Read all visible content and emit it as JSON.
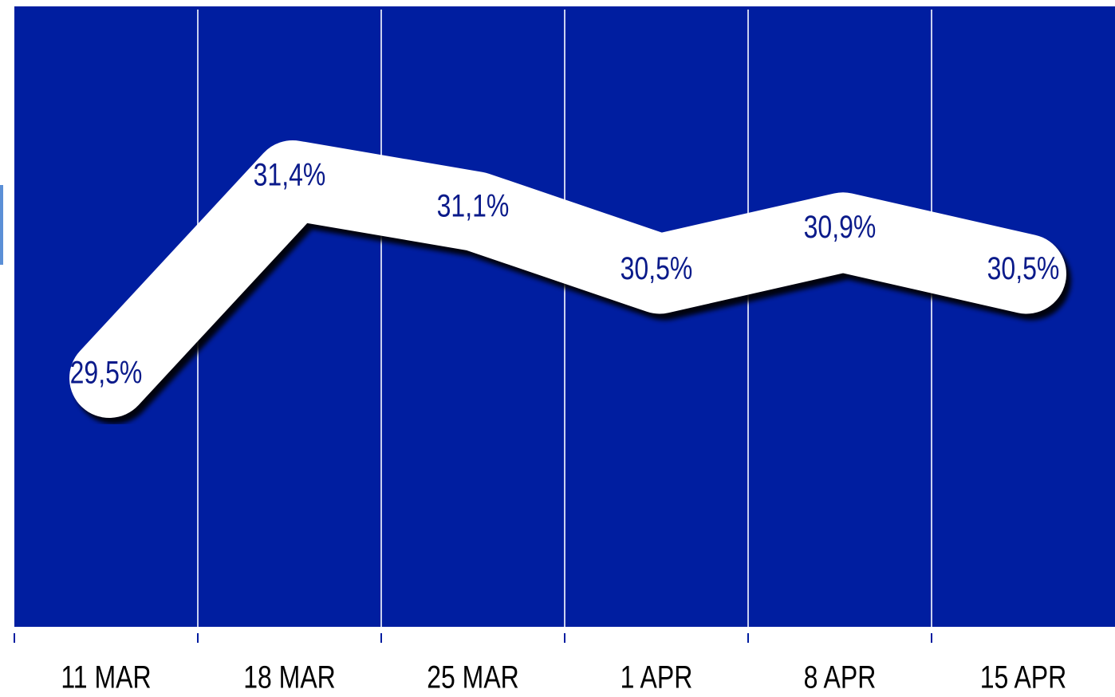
{
  "chart_data": {
    "type": "line",
    "categories": [
      "11 MAR",
      "18 MAR",
      "25 MAR",
      "1 APR",
      "8 APR",
      "15 APR"
    ],
    "series": [
      {
        "color": "#ffffff",
        "values": [
          29.5,
          31.4,
          31.1,
          30.5,
          30.9,
          30.5
        ],
        "value_labels": [
          "29,5%",
          "31,4%",
          "31,1%",
          "30,5%",
          "30,9%",
          "30,5%"
        ]
      }
    ],
    "background": "#001ea0",
    "label_color": "#0a1a8a"
  }
}
